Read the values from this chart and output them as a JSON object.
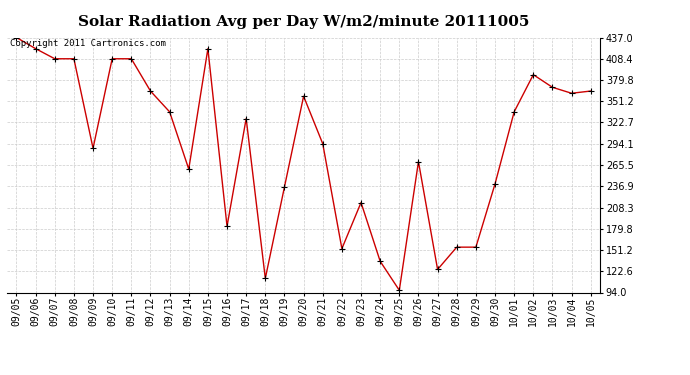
{
  "title": "Solar Radiation Avg per Day W/m2/minute 20111005",
  "copyright_text": "Copyright 2011 Cartronics.com",
  "labels": [
    "09/05",
    "09/06",
    "09/07",
    "09/08",
    "09/09",
    "09/10",
    "09/11",
    "09/12",
    "09/13",
    "09/14",
    "09/15",
    "09/16",
    "09/17",
    "09/18",
    "09/19",
    "09/20",
    "09/21",
    "09/22",
    "09/23",
    "09/24",
    "09/25",
    "09/26",
    "09/27",
    "09/28",
    "09/29",
    "09/30",
    "10/01",
    "10/02",
    "10/03",
    "10/04",
    "10/05"
  ],
  "values": [
    437.0,
    422.0,
    408.4,
    408.4,
    288.0,
    408.4,
    408.4,
    365.0,
    337.0,
    260.0,
    422.0,
    183.0,
    328.0,
    113.0,
    236.0,
    358.0,
    294.1,
    153.0,
    215.0,
    136.0,
    97.0,
    270.0,
    125.0,
    155.0,
    155.0,
    240.0,
    337.0,
    387.0,
    370.0,
    362.0,
    365.0
  ],
  "line_color": "#cc0000",
  "marker": "+",
  "marker_color": "#000000",
  "bg_color": "#ffffff",
  "grid_color": "#cccccc",
  "title_fontsize": 11,
  "tick_fontsize": 7,
  "copyright_fontsize": 6.5,
  "ylim": [
    94.0,
    437.0
  ],
  "yticks": [
    94.0,
    122.6,
    151.2,
    179.8,
    208.3,
    236.9,
    265.5,
    294.1,
    322.7,
    351.2,
    379.8,
    408.4,
    437.0
  ],
  "fig_width": 6.9,
  "fig_height": 3.75,
  "dpi": 100
}
